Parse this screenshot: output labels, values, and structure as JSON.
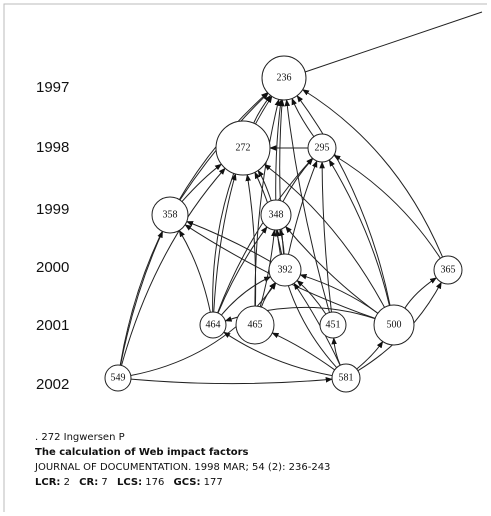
{
  "years": [
    "1997",
    "1998",
    "1999",
    "2000",
    "2001",
    "2002"
  ],
  "nodes": [
    "236",
    "272",
    "295",
    "358",
    "348",
    "392",
    "365",
    "464",
    "465",
    "451",
    "500",
    "549",
    "581"
  ],
  "caption": {
    "line1": ". 272 Ingwersen P",
    "title": "The calculation of Web impact factors",
    "source": "JOURNAL OF DOCUMENTATION. 1998 MAR; 54 (2): 236-243",
    "metrics": [
      {
        "label": "LCR:",
        "value": 2
      },
      {
        "label": "CR:",
        "value": 7
      },
      {
        "label": "LCS:",
        "value": 176
      },
      {
        "label": "GCS:",
        "value": 177
      }
    ]
  }
}
